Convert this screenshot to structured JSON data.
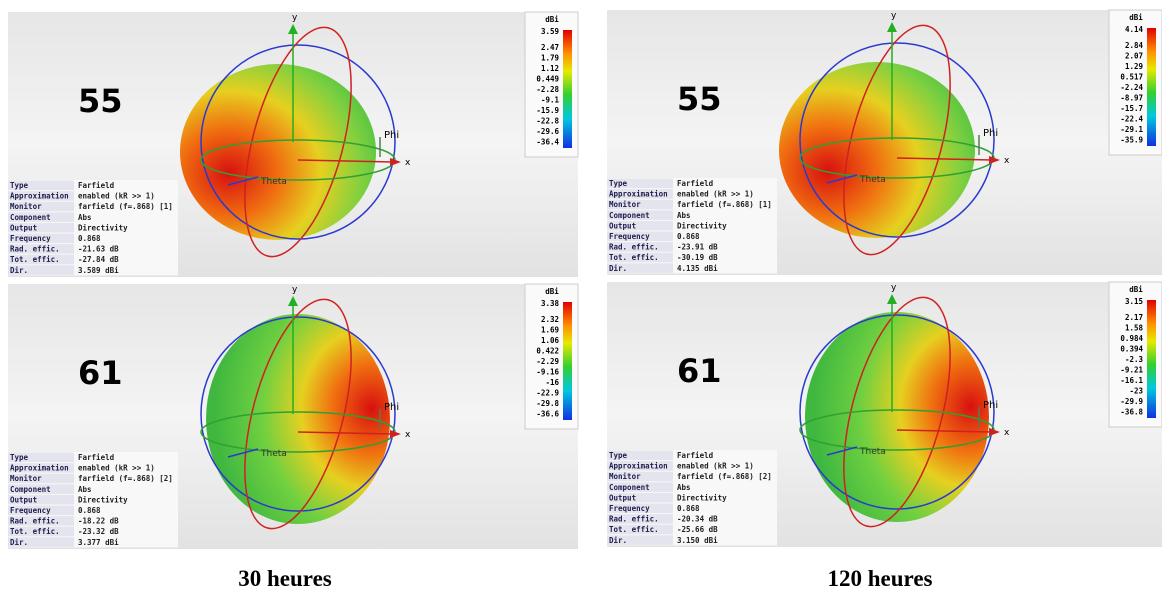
{
  "axis_labels": {
    "y": "y",
    "x": "x",
    "phi": "Phi",
    "theta": "Theta"
  },
  "colorbar_unit": "dBi",
  "panels": [
    {
      "label": "55",
      "colorbar_ticks": [
        "3.59",
        "2.47",
        "1.79",
        "1.12",
        "0.449",
        "-2.28",
        "-9.1",
        "-15.9",
        "-22.8",
        "-29.6",
        "-36.4"
      ],
      "info": [
        [
          "Type",
          "Farfield"
        ],
        [
          "Approximation",
          "enabled (kR >> 1)"
        ],
        [
          "Monitor",
          "farfield (f=.868) [1]"
        ],
        [
          "Component",
          "Abs"
        ],
        [
          "Output",
          "Directivity"
        ],
        [
          "Frequency",
          "0.868"
        ],
        [
          "Rad. effic.",
          "-21.63 dB"
        ],
        [
          "Tot. effic.",
          "-27.84 dB"
        ],
        [
          "Dir.",
          "3.589 dBi"
        ]
      ]
    },
    {
      "label": "55",
      "colorbar_ticks": [
        "4.14",
        "2.84",
        "2.07",
        "1.29",
        "0.517",
        "-2.24",
        "-8.97",
        "-15.7",
        "-22.4",
        "-29.1",
        "-35.9"
      ],
      "info": [
        [
          "Type",
          "Farfield"
        ],
        [
          "Approximation",
          "enabled (kR >> 1)"
        ],
        [
          "Monitor",
          "farfield (f=.868) [1]"
        ],
        [
          "Component",
          "Abs"
        ],
        [
          "Output",
          "Directivity"
        ],
        [
          "Frequency",
          "0.868"
        ],
        [
          "Rad. effic.",
          "-23.91 dB"
        ],
        [
          "Tot. effic.",
          "-30.19 dB"
        ],
        [
          "Dir.",
          "4.135 dBi"
        ]
      ]
    },
    {
      "label": "61",
      "colorbar_ticks": [
        "3.38",
        "2.32",
        "1.69",
        "1.06",
        "0.422",
        "-2.29",
        "-9.16",
        "-16",
        "-22.9",
        "-29.8",
        "-36.6"
      ],
      "info": [
        [
          "Type",
          "Farfield"
        ],
        [
          "Approximation",
          "enabled (kR >> 1)"
        ],
        [
          "Monitor",
          "farfield (f=.868) [2]"
        ],
        [
          "Component",
          "Abs"
        ],
        [
          "Output",
          "Directivity"
        ],
        [
          "Frequency",
          "0.868"
        ],
        [
          "Rad. effic.",
          "-18.22 dB"
        ],
        [
          "Tot. effic.",
          "-23.32 dB"
        ],
        [
          "Dir.",
          "3.377 dBi"
        ]
      ]
    },
    {
      "label": "61",
      "colorbar_ticks": [
        "3.15",
        "2.17",
        "1.58",
        "0.984",
        "0.394",
        "-2.3",
        "-9.21",
        "-16.1",
        "-23",
        "-29.9",
        "-36.8"
      ],
      "info": [
        [
          "Type",
          "Farfield"
        ],
        [
          "Approximation",
          "enabled (kR >> 1)"
        ],
        [
          "Monitor",
          "farfield (f=.868) [2]"
        ],
        [
          "Component",
          "Abs"
        ],
        [
          "Output",
          "Directivity"
        ],
        [
          "Frequency",
          "0.868"
        ],
        [
          "Rad. effic.",
          "-20.34 dB"
        ],
        [
          "Tot. effic.",
          "-25.66 dB"
        ],
        [
          "Dir.",
          "3.150 dBi"
        ]
      ]
    }
  ],
  "captions": [
    "30 heures",
    "120 heures"
  ]
}
